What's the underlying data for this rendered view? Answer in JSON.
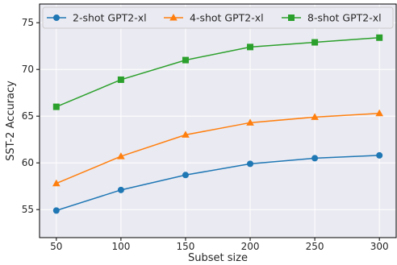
{
  "chart_data": {
    "type": "line",
    "title": "",
    "xlabel": "Subset size",
    "ylabel": "SST-2 Accuracy",
    "x": [
      50,
      100,
      150,
      200,
      250,
      300
    ],
    "xlim": [
      37,
      313
    ],
    "ylim": [
      52,
      77
    ],
    "xticks": [
      "50",
      "100",
      "150",
      "200",
      "250",
      "300"
    ],
    "yticks": [
      "55",
      "60",
      "65",
      "70",
      "75"
    ],
    "grid": true,
    "legend_position": "top",
    "series": [
      {
        "name": "2-shot GPT2-xl",
        "color": "#1f77b4",
        "marker": "circle",
        "values": [
          54.9,
          57.1,
          58.7,
          59.9,
          60.5,
          60.8
        ]
      },
      {
        "name": "4-shot GPT2-xl",
        "color": "#ff7f0e",
        "marker": "triangle",
        "values": [
          57.8,
          60.7,
          63.0,
          64.3,
          64.9,
          65.3
        ]
      },
      {
        "name": "8-shot GPT2-xl",
        "color": "#2ca02c",
        "marker": "square",
        "values": [
          66.0,
          68.9,
          71.0,
          72.4,
          72.9,
          73.4
        ]
      }
    ],
    "background_color": "#eaeaf2",
    "grid_color": "#ffffff"
  }
}
